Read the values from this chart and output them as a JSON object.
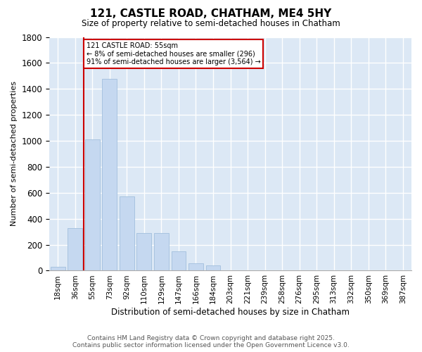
{
  "title1": "121, CASTLE ROAD, CHATHAM, ME4 5HY",
  "title2": "Size of property relative to semi-detached houses in Chatham",
  "xlabel": "Distribution of semi-detached houses by size in Chatham",
  "ylabel": "Number of semi-detached properties",
  "categories": [
    "18sqm",
    "36sqm",
    "55sqm",
    "73sqm",
    "92sqm",
    "110sqm",
    "129sqm",
    "147sqm",
    "166sqm",
    "184sqm",
    "203sqm",
    "221sqm",
    "239sqm",
    "258sqm",
    "276sqm",
    "295sqm",
    "313sqm",
    "332sqm",
    "350sqm",
    "369sqm",
    "387sqm"
  ],
  "values": [
    30,
    330,
    1010,
    1480,
    570,
    290,
    290,
    150,
    55,
    40,
    0,
    0,
    0,
    0,
    0,
    0,
    0,
    0,
    0,
    0,
    0
  ],
  "bar_color": "#c5d8f0",
  "bar_edge_color": "#a8c4e0",
  "vline_color": "#cc0000",
  "annotation_title": "121 CASTLE ROAD: 55sqm",
  "annotation_line1": "← 8% of semi-detached houses are smaller (296)",
  "annotation_line2": "91% of semi-detached houses are larger (3,564) →",
  "annotation_box_color": "#cc0000",
  "ylim": [
    0,
    1800
  ],
  "yticks": [
    0,
    200,
    400,
    600,
    800,
    1000,
    1200,
    1400,
    1600,
    1800
  ],
  "bg_color": "#dce8f5",
  "footer1": "Contains HM Land Registry data © Crown copyright and database right 2025.",
  "footer2": "Contains public sector information licensed under the Open Government Licence v3.0."
}
